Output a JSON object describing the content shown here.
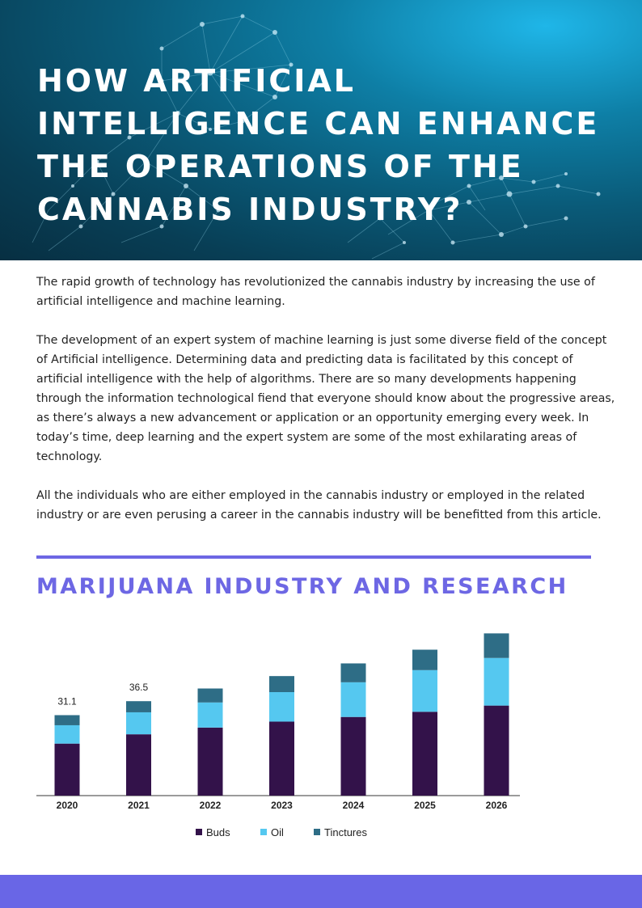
{
  "hero": {
    "title": "HOW ARTIFICIAL INTELLIGENCE CAN ENHANCE THE OPERATIONS OF THE CANNABIS INDUSTRY?"
  },
  "intro": {
    "paragraphs": [
      "The rapid growth of technology has revolutionized the cannabis industry by increasing the use of artificial intelligence and machine learning.",
      "The development of an expert system of machine learning is just some diverse field of the concept of Artificial intelligence. Determining data and predicting data is facilitated by this concept of artificial intelligence with the help of algorithms. There are so many developments happening through the information technological fiend that everyone should know about the progressive areas, as there’s always a new advancement or application or an opportunity emerging every week. In today’s time, deep learning and the expert system are some of the most exhilarating areas of technology.",
      "All the individuals who are either employed in the cannabis industry or employed in the related industry or are even perusing a career in the cannabis industry will be benefitted from this article."
    ]
  },
  "section": {
    "heading": "MARIJUANA INDUSTRY AND RESEARCH"
  },
  "colors": {
    "accent": "#6d67e4",
    "buds": "#33124a",
    "oil": "#55c8f0",
    "tinctures": "#2e6d86"
  },
  "chart_data": {
    "type": "bar",
    "stacked": true,
    "categories": [
      "2020",
      "2021",
      "2022",
      "2023",
      "2024",
      "2025",
      "2026"
    ],
    "series": [
      {
        "name": "Buds",
        "values": [
          20.1,
          23.7,
          26.3,
          28.6,
          30.4,
          32.4,
          34.8
        ]
      },
      {
        "name": "Oil",
        "values": [
          7.1,
          8.5,
          9.7,
          11.4,
          13.4,
          16.1,
          18.4
        ]
      },
      {
        "name": "Tinctures",
        "values": [
          3.9,
          4.3,
          5.4,
          6.2,
          7.3,
          7.9,
          9.5
        ]
      }
    ],
    "data_labels": [
      "31.1",
      "36.5",
      "",
      "",
      "",
      "",
      ""
    ],
    "legend_position": "bottom",
    "grid": false
  }
}
